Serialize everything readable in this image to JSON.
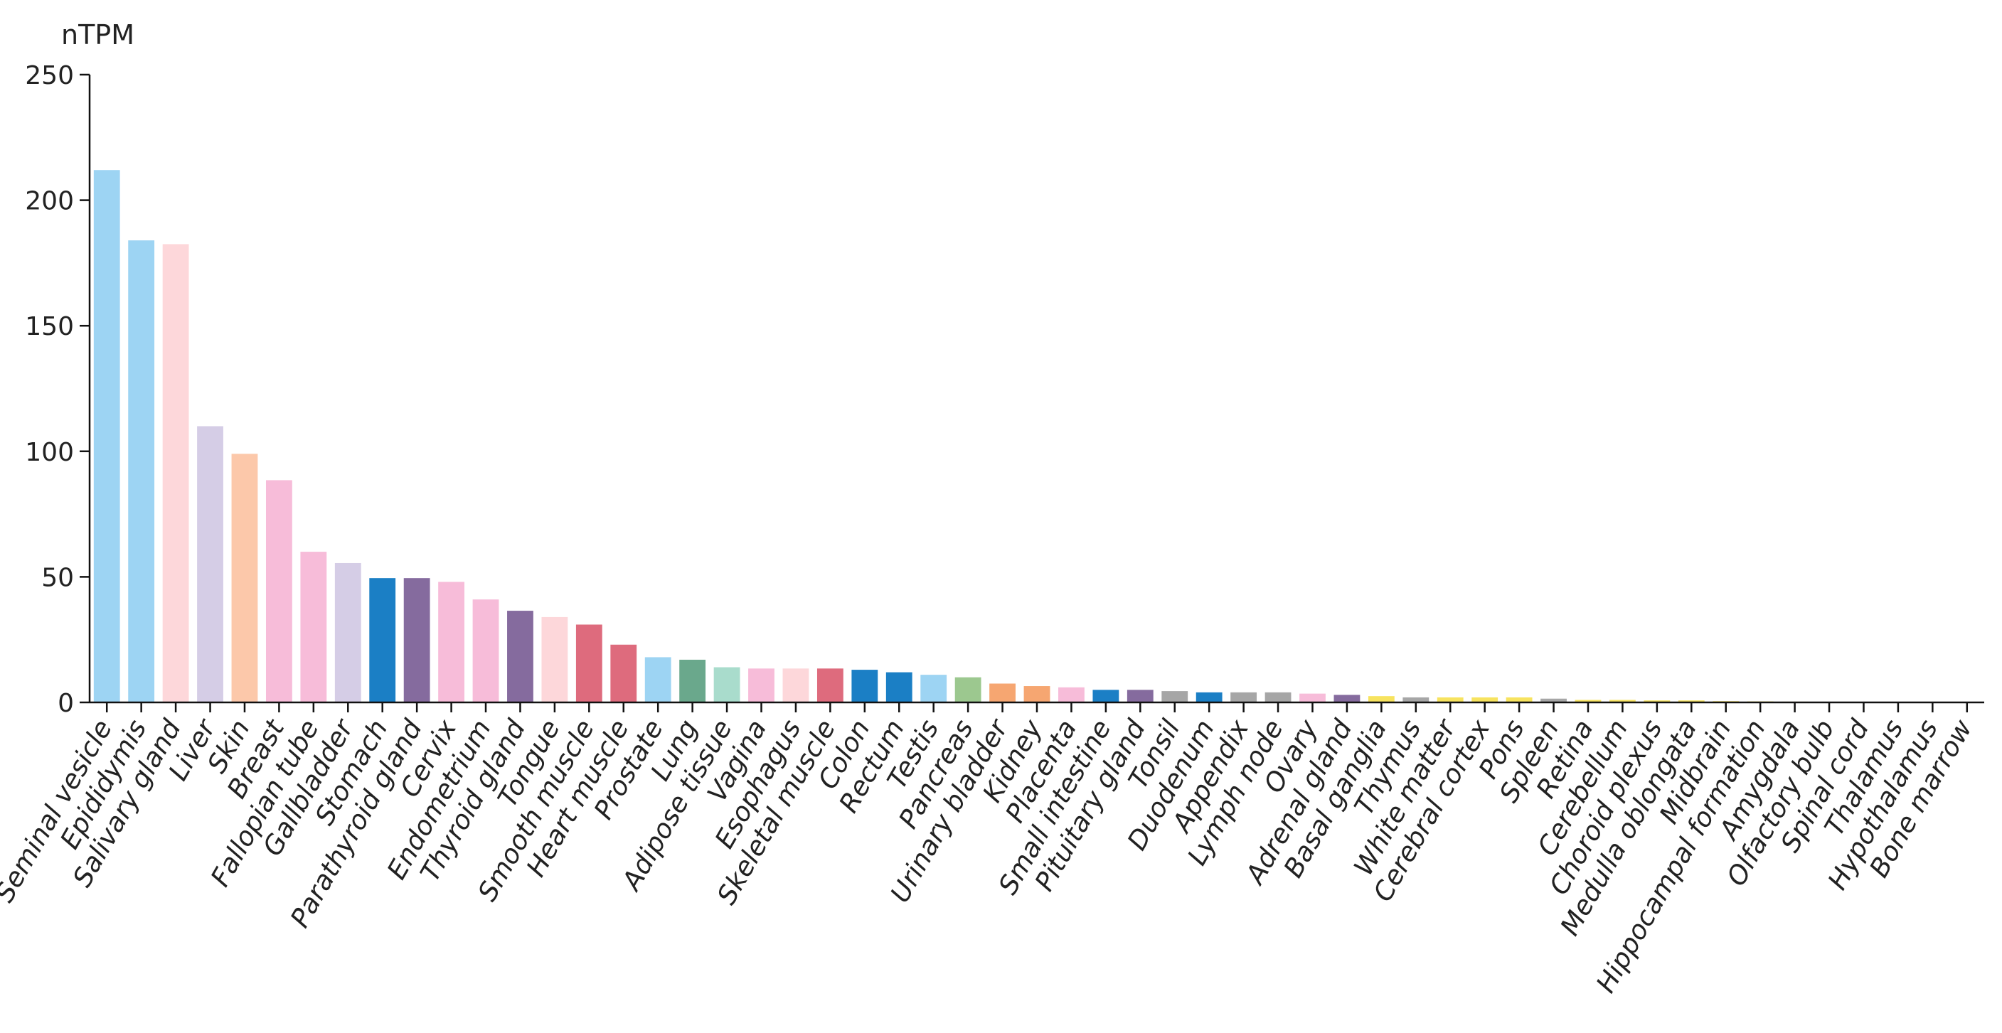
{
  "chart_data": {
    "type": "bar",
    "ylabel": "nTPM",
    "ylim": [
      0,
      250
    ],
    "yticks": [
      0,
      50,
      100,
      150,
      200,
      250
    ],
    "grid": false,
    "categories": [
      "Seminal vesicle",
      "Epididymis",
      "Salivary gland",
      "Liver",
      "Skin",
      "Breast",
      "Fallopian tube",
      "Gallbladder",
      "Stomach",
      "Parathyroid gland",
      "Cervix",
      "Endometrium",
      "Thyroid gland",
      "Tongue",
      "Smooth muscle",
      "Heart muscle",
      "Prostate",
      "Lung",
      "Adipose tissue",
      "Vagina",
      "Esophagus",
      "Skeletal muscle",
      "Colon",
      "Rectum",
      "Testis",
      "Pancreas",
      "Urinary bladder",
      "Kidney",
      "Placenta",
      "Small intestine",
      "Pituitary gland",
      "Tonsil",
      "Duodenum",
      "Appendix",
      "Lymph node",
      "Ovary",
      "Adrenal gland",
      "Basal ganglia",
      "Thymus",
      "White matter",
      "Cerebral cortex",
      "Pons",
      "Spleen",
      "Retina",
      "Cerebellum",
      "Choroid plexus",
      "Medulla oblongata",
      "Midbrain",
      "Hippocampal formation",
      "Amygdala",
      "Olfactory bulb",
      "Spinal cord",
      "Thalamus",
      "Hypothalamus",
      "Bone marrow"
    ],
    "values": [
      212,
      184,
      182.5,
      110,
      99,
      88.5,
      60,
      55.5,
      49.5,
      49.5,
      48,
      41,
      36.5,
      34,
      31,
      23,
      18,
      17,
      14,
      13.5,
      13.5,
      13.5,
      13,
      12,
      11,
      10,
      7.5,
      6.5,
      6,
      5,
      5,
      4.5,
      4,
      4,
      4,
      3.5,
      3,
      2.5,
      2,
      2,
      2,
      2,
      1.5,
      1,
      1,
      0.8,
      0.8,
      0.5,
      0.4,
      0.3,
      0.2,
      0.1,
      0.1,
      0.1,
      0.1
    ],
    "colors": [
      "#9dd4f3",
      "#9dd4f3",
      "#fdd7da",
      "#d5cde6",
      "#fcc8aa",
      "#f7bcd9",
      "#f7bcd9",
      "#d5cde6",
      "#1b7fc5",
      "#856b9e",
      "#f7bcd9",
      "#f7bcd9",
      "#856b9e",
      "#fdd7da",
      "#de6b7d",
      "#de6b7d",
      "#9dd4f3",
      "#6aa88c",
      "#a9dccc",
      "#f7bcd9",
      "#fdd7da",
      "#de6b7d",
      "#1b7fc5",
      "#1b7fc5",
      "#9dd4f3",
      "#9cc88f",
      "#f6a671",
      "#f6a671",
      "#f7bcd9",
      "#1b7fc5",
      "#856b9e",
      "#a6a6a6",
      "#1b7fc5",
      "#a6a6a6",
      "#a6a6a6",
      "#f7bcd9",
      "#856b9e",
      "#f7e35f",
      "#a6a6a6",
      "#f7e35f",
      "#f7e35f",
      "#f7e35f",
      "#a6a6a6",
      "#f7e35f",
      "#f7e35f",
      "#f7e35f",
      "#f7e35f",
      "#f7e35f",
      "#f7e35f",
      "#f7e35f",
      "#f7e35f",
      "#f7e35f",
      "#f7e35f",
      "#f7e35f",
      "#a6a6a6"
    ]
  }
}
